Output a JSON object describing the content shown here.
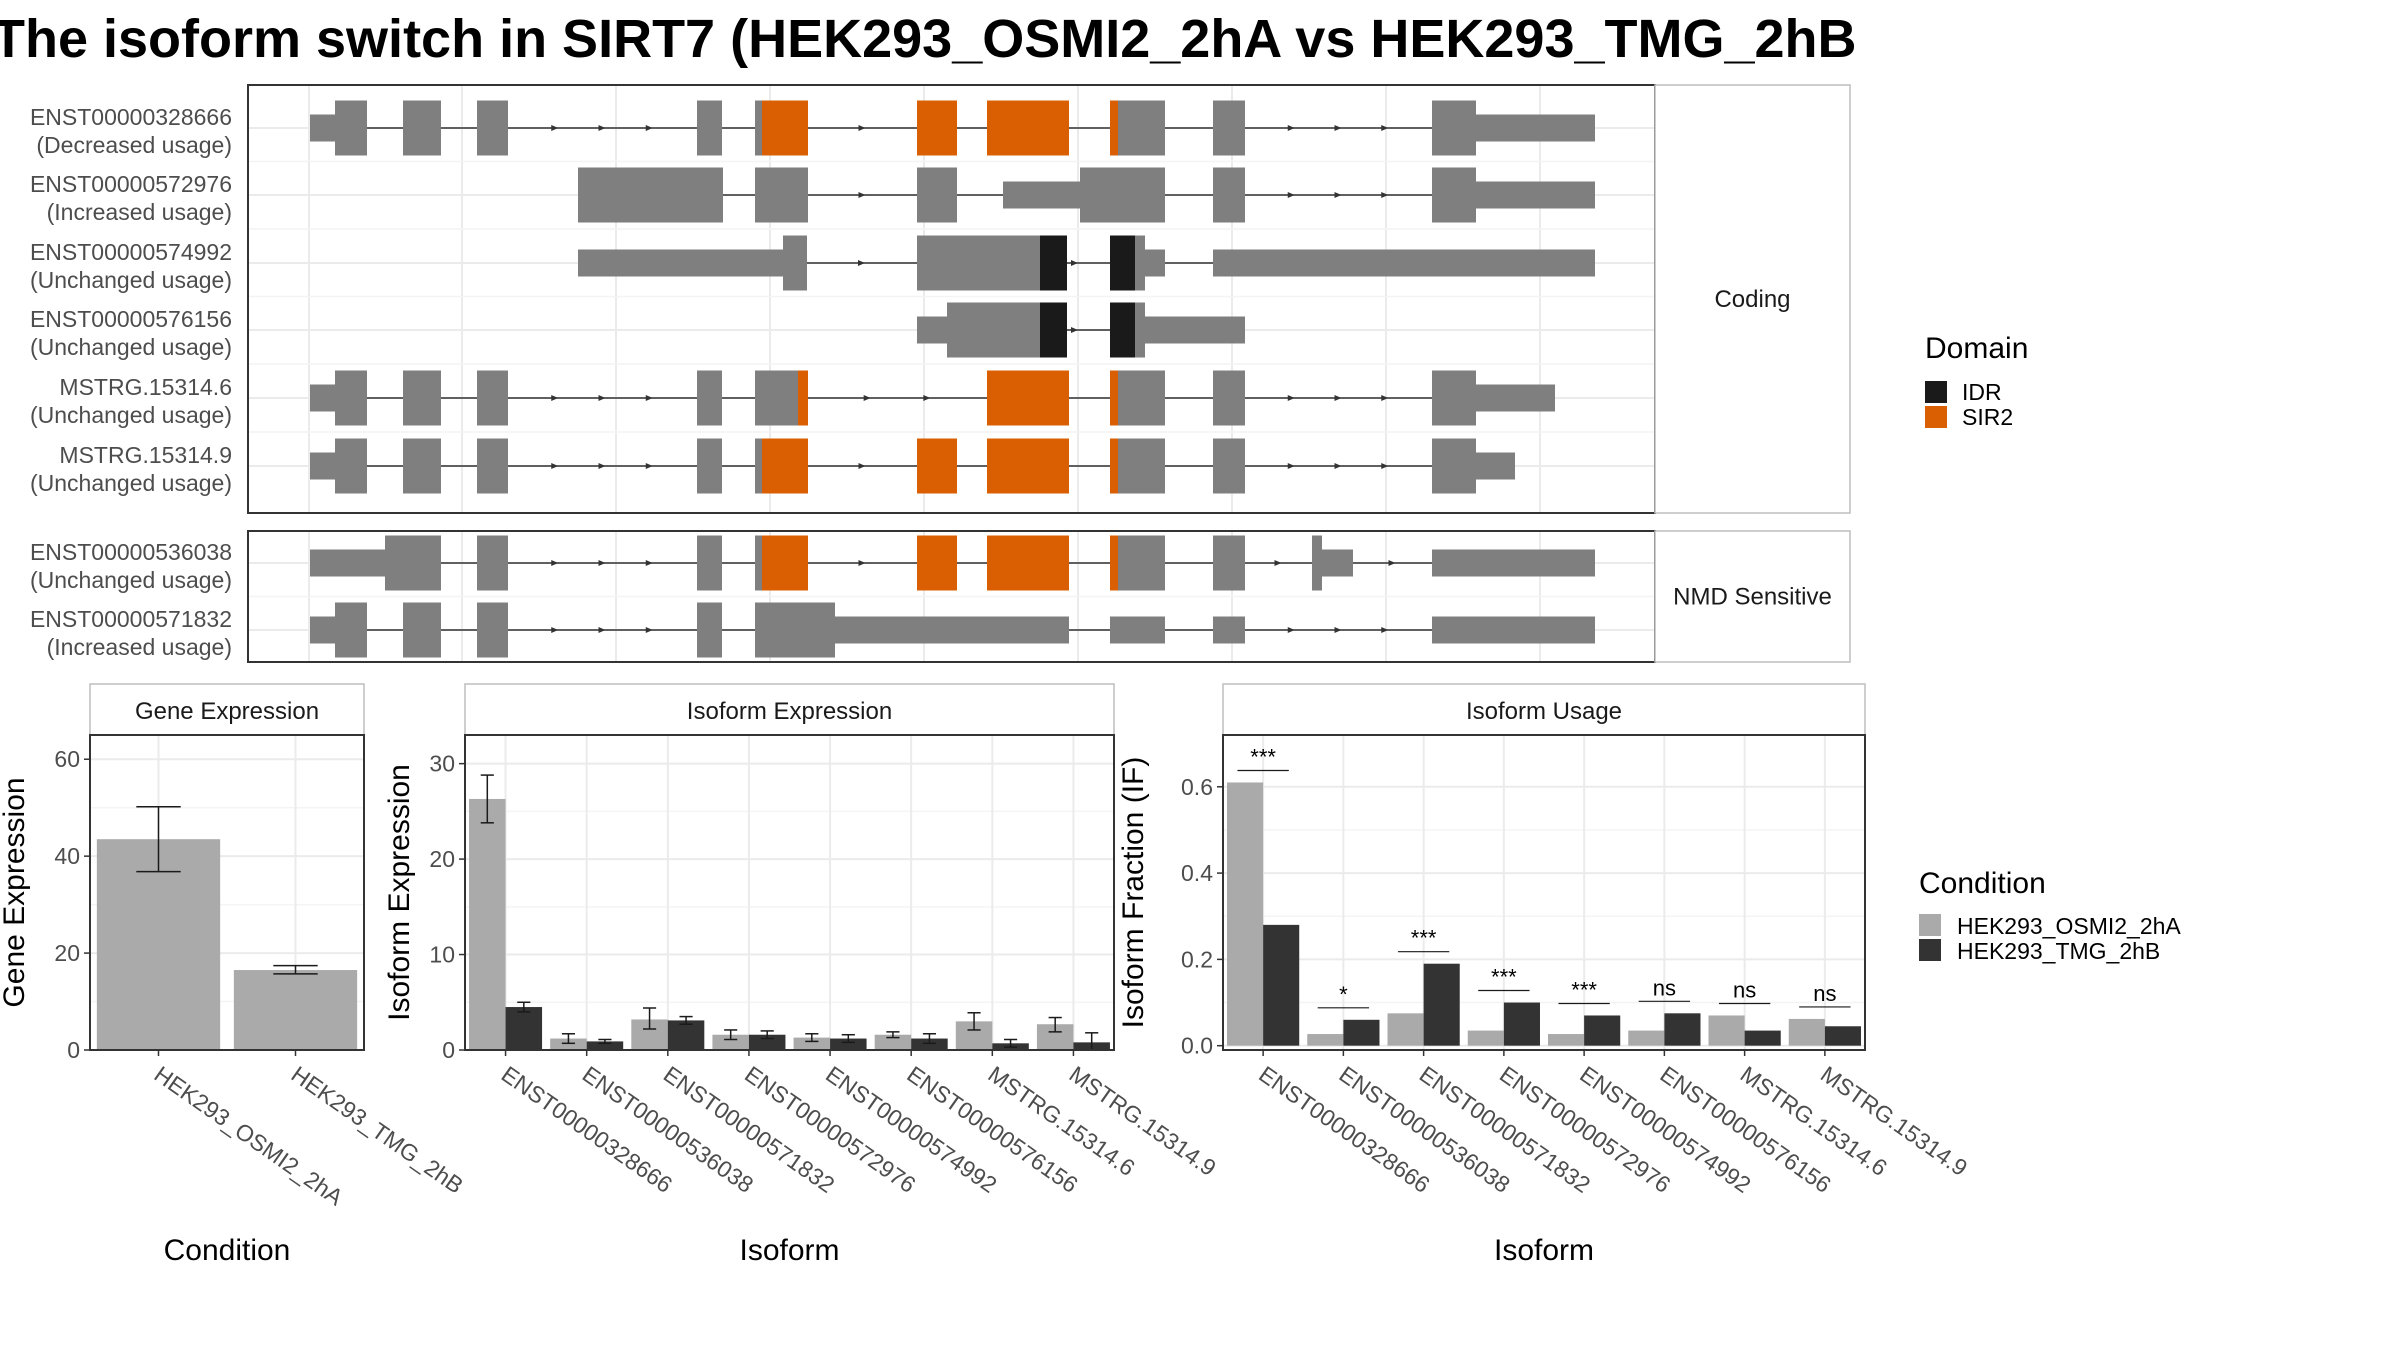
{
  "title": "The isoform switch in SIRT7 (HEK293_OSMI2_2hA vs HEK293_TMG_2hB",
  "colors": {
    "exon": "#7f7f7f",
    "idr": "#1a1a1a",
    "sir2": "#d95f02",
    "cond_a": "#aaaaaa",
    "cond_b": "#333333",
    "grid": "#ebebeb",
    "panel_border": "#333333"
  },
  "legends": {
    "domain": {
      "title": "Domain",
      "items": [
        {
          "label": "IDR",
          "color": "#1a1a1a"
        },
        {
          "label": "SIR2",
          "color": "#d95f02"
        }
      ]
    },
    "condition": {
      "title": "Condition",
      "items": [
        {
          "label": "HEK293_OSMI2_2hA",
          "color": "#aaaaaa"
        },
        {
          "label": "HEK293_TMG_2hB",
          "color": "#333333"
        }
      ]
    }
  },
  "chart_data": [
    {
      "type": "gene-structure",
      "facets": [
        {
          "label": "Coding",
          "transcripts": [
            {
              "name": "ENST00000328666",
              "usage": "(Decreased usage)"
            },
            {
              "name": "ENST00000572976",
              "usage": "(Increased usage)"
            },
            {
              "name": "ENST00000574992",
              "usage": "(Unchanged usage)"
            },
            {
              "name": "ENST00000576156",
              "usage": "(Unchanged usage)"
            },
            {
              "name": "MSTRG.15314.6",
              "usage": "(Unchanged usage)"
            },
            {
              "name": "MSTRG.15314.9",
              "usage": "(Unchanged usage)"
            }
          ]
        },
        {
          "label": "NMD Sensitive",
          "transcripts": [
            {
              "name": "ENST00000536038",
              "usage": "(Unchanged usage)"
            },
            {
              "name": "ENST00000571832",
              "usage": "(Increased usage)"
            }
          ]
        }
      ]
    },
    {
      "type": "bar",
      "title": "Gene Expression",
      "xlabel": "Condition",
      "ylabel": "Gene Expression",
      "ylim": [
        0,
        65
      ],
      "yticks": [
        "0",
        "20",
        "40",
        "60"
      ],
      "categories": [
        "HEK293_OSMI2_2hA",
        "HEK293_TMG_2hB"
      ],
      "values": [
        43.5,
        16.5
      ],
      "errors": [
        [
          36.8,
          50.2
        ],
        [
          15.7,
          17.4
        ]
      ]
    },
    {
      "type": "bar",
      "title": "Isoform Expression",
      "xlabel": "Isoform",
      "ylabel": "Isoform Expression",
      "ylim": [
        0,
        33
      ],
      "yticks": [
        "0",
        "10",
        "20",
        "30"
      ],
      "categories": [
        "ENST00000328666",
        "ENST00000536038",
        "ENST00000571832",
        "ENST00000572976",
        "ENST00000574992",
        "ENST00000576156",
        "MSTRG.15314.6",
        "MSTRG.15314.9"
      ],
      "series": [
        {
          "name": "HEK293_OSMI2_2hA",
          "values": [
            26.3,
            1.2,
            3.2,
            1.6,
            1.3,
            1.6,
            3.0,
            2.7
          ],
          "errors": [
            [
              23.8,
              28.8
            ],
            [
              0.7,
              1.7
            ],
            [
              2.2,
              4.4
            ],
            [
              1.1,
              2.1
            ],
            [
              0.9,
              1.7
            ],
            [
              1.3,
              1.9
            ],
            [
              2.1,
              3.9
            ],
            [
              1.9,
              3.4
            ]
          ]
        },
        {
          "name": "HEK293_TMG_2hB",
          "values": [
            4.5,
            0.9,
            3.1,
            1.6,
            1.2,
            1.2,
            0.7,
            0.8
          ],
          "errors": [
            [
              4.0,
              5.0
            ],
            [
              0.7,
              1.1
            ],
            [
              2.7,
              3.5
            ],
            [
              1.2,
              2.0
            ],
            [
              0.8,
              1.6
            ],
            [
              0.7,
              1.7
            ],
            [
              0.3,
              1.1
            ],
            [
              0.0,
              1.8
            ]
          ]
        }
      ]
    },
    {
      "type": "bar",
      "title": "Isoform Usage",
      "xlabel": "Isoform",
      "ylabel": "Isoform Fraction (IF)",
      "ylim": [
        -0.01,
        0.72
      ],
      "yticks": [
        "0.0",
        "0.2",
        "0.4",
        "0.6"
      ],
      "categories": [
        "ENST00000328666",
        "ENST00000536038",
        "ENST00000571832",
        "ENST00000572976",
        "ENST00000574992",
        "ENST00000576156",
        "MSTRG.15314.6",
        "MSTRG.15314.9"
      ],
      "series": [
        {
          "name": "HEK293_OSMI2_2hA",
          "values": [
            0.61,
            0.027,
            0.075,
            0.035,
            0.027,
            0.035,
            0.07,
            0.062
          ]
        },
        {
          "name": "HEK293_TMG_2hB",
          "values": [
            0.28,
            0.06,
            0.19,
            0.1,
            0.07,
            0.075,
            0.035,
            0.045
          ]
        }
      ],
      "significance": [
        "***",
        "*",
        "***",
        "***",
        "***",
        "ns",
        "ns",
        "ns"
      ]
    }
  ]
}
